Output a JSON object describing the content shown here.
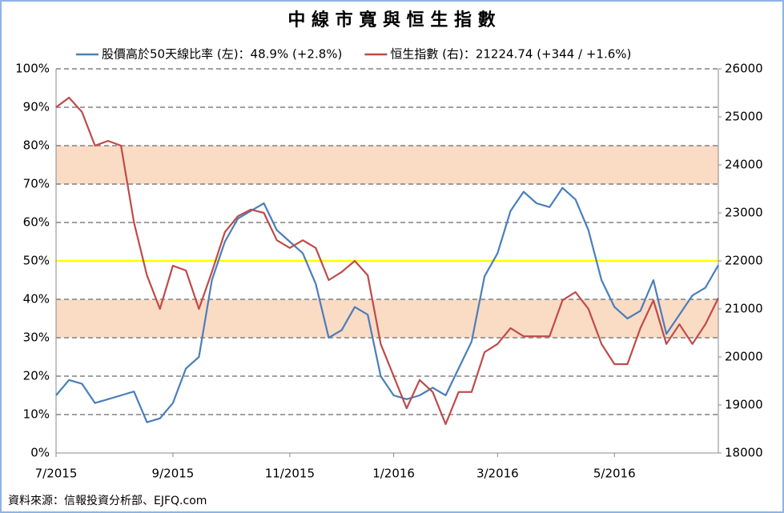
{
  "chart_data": {
    "type": "line",
    "title": "中 線 市 寬 與 恒 生 指 數",
    "source": "資料來源：信報投資分析部、EJFQ.com",
    "categories": [
      "7/2015",
      null,
      null,
      null,
      null,
      null,
      null,
      null,
      null,
      "9/2015",
      null,
      null,
      null,
      null,
      null,
      null,
      null,
      null,
      "11/2015",
      null,
      null,
      null,
      null,
      null,
      null,
      null,
      "1/2016",
      null,
      null,
      null,
      null,
      null,
      null,
      null,
      "3/2016",
      null,
      null,
      null,
      null,
      null,
      null,
      null,
      null,
      "5/2016",
      null,
      null,
      null,
      null,
      null,
      null,
      null,
      null
    ],
    "series": [
      {
        "name": "股價高於50天線比率 (左)：48.9% (+2.8%)",
        "color": "#4a7ebb",
        "axis": "y",
        "values": [
          15,
          19,
          18,
          13,
          14,
          15,
          16,
          8,
          9,
          13,
          22,
          25,
          45,
          55,
          61,
          63,
          65,
          58,
          55,
          52,
          44,
          30,
          32,
          38,
          36,
          20,
          15,
          14,
          15,
          17,
          15,
          22,
          29,
          46,
          52,
          63,
          68,
          65,
          64,
          69,
          66,
          58,
          45,
          38,
          35,
          37,
          45,
          31,
          36,
          41,
          43,
          48.9
        ]
      },
      {
        "name": "恒生指數 (右)：21224.74 (+344 / +1.6%)",
        "color": "#be4b48",
        "axis": "y2",
        "values": [
          25200,
          25400,
          25100,
          24400,
          24500,
          24400,
          22800,
          21700,
          21000,
          21900,
          21800,
          21000,
          21770,
          22600,
          22930,
          23070,
          23000,
          22430,
          22270,
          22430,
          22270,
          21600,
          21770,
          22000,
          21700,
          20270,
          19600,
          18930,
          19520,
          19270,
          18600,
          19270,
          19270,
          20100,
          20270,
          20600,
          20430,
          20430,
          20430,
          21180,
          21350,
          21000,
          20270,
          19850,
          19850,
          20600,
          21180,
          20270,
          20680,
          20270,
          20680,
          21224.74
        ]
      }
    ],
    "ylim": [
      0,
      100
    ],
    "yticks": [
      {
        "value": 0,
        "label": "0%"
      },
      {
        "value": 10,
        "label": "10%"
      },
      {
        "value": 20,
        "label": "20%"
      },
      {
        "value": 30,
        "label": "30%"
      },
      {
        "value": 40,
        "label": "40%"
      },
      {
        "value": 50,
        "label": "50%"
      },
      {
        "value": 60,
        "label": "60%"
      },
      {
        "value": 70,
        "label": "70%"
      },
      {
        "value": 80,
        "label": "80%"
      },
      {
        "value": 90,
        "label": "90%"
      },
      {
        "value": 100,
        "label": "100%"
      }
    ],
    "y2lim": [
      18000,
      26000
    ],
    "y2ticks": [
      18000,
      19000,
      20000,
      21000,
      22000,
      23000,
      24000,
      25000,
      26000
    ],
    "grid": true,
    "shaded_bands": [
      [
        30,
        40
      ],
      [
        70,
        80
      ]
    ],
    "band_color": "#fadbc4",
    "reference_line": 50,
    "reference_color": "#ffff00",
    "legend": "top"
  }
}
